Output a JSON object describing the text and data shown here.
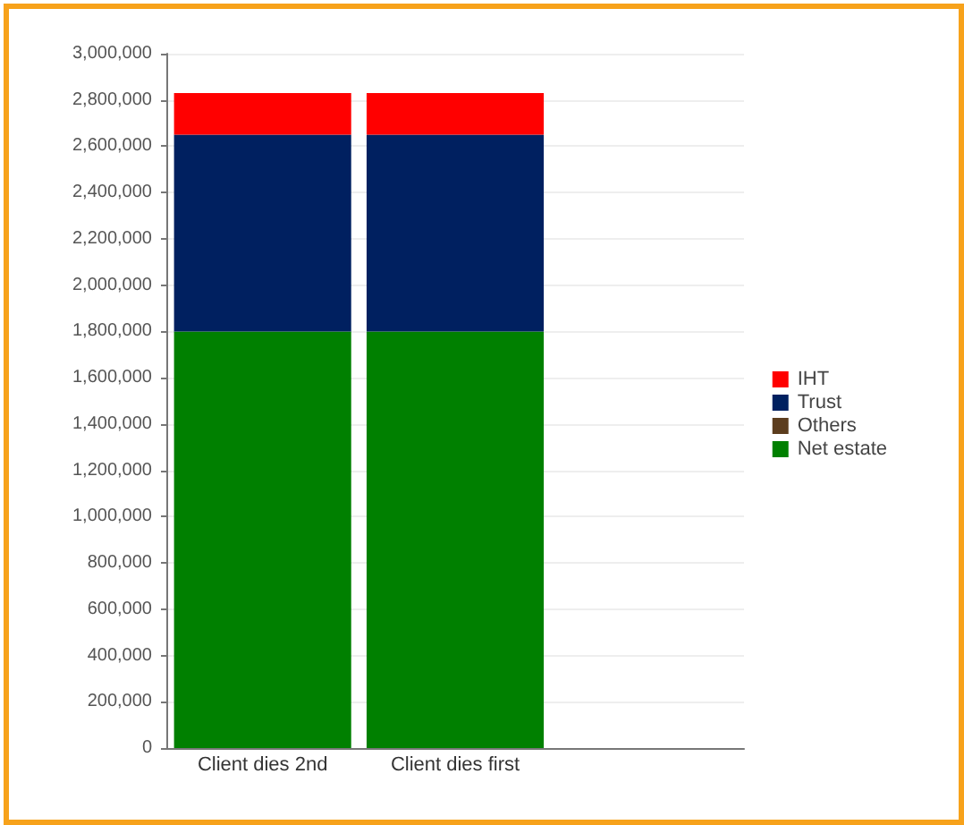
{
  "chart_data": {
    "type": "bar",
    "stacked": true,
    "categories": [
      "Client dies 2nd",
      "Client dies first",
      null
    ],
    "series": [
      {
        "name": "Net estate",
        "color": "#008000",
        "values": [
          1800000,
          1800000,
          null
        ]
      },
      {
        "name": "Others",
        "color": "#5c3d1e",
        "values": [
          0,
          0,
          null
        ]
      },
      {
        "name": "Trust",
        "color": "#002060",
        "values": [
          850000,
          850000,
          null
        ]
      },
      {
        "name": "IHT",
        "color": "#ff0000",
        "values": [
          180000,
          180000,
          null
        ]
      }
    ],
    "ylim": [
      0,
      3000000
    ],
    "yticks": [
      0,
      {
        "value": 200000,
        "label": "200,000"
      },
      {
        "value": 400000,
        "label": "400,000"
      },
      {
        "value": 600000,
        "label": "600,000"
      },
      {
        "value": 800000,
        "label": "800,000"
      },
      {
        "value": 1000000,
        "label": "1,000,000"
      },
      {
        "value": 1200000,
        "label": "1,200,000"
      },
      {
        "value": 1400000,
        "label": "1,400,000"
      },
      {
        "value": 1600000,
        "label": "1,600,000"
      },
      {
        "value": 1800000,
        "label": "1,800,000"
      },
      {
        "value": 2000000,
        "label": "2,000,000"
      },
      {
        "value": 2200000,
        "label": "2,200,000"
      },
      {
        "value": 2400000,
        "label": "2,400,000"
      },
      {
        "value": 2600000,
        "label": "2,600,000"
      },
      {
        "value": 2800000,
        "label": "2,800,000"
      },
      {
        "value": 3000000,
        "label": "3,000,000"
      }
    ],
    "grid": "y",
    "legend": "right"
  }
}
